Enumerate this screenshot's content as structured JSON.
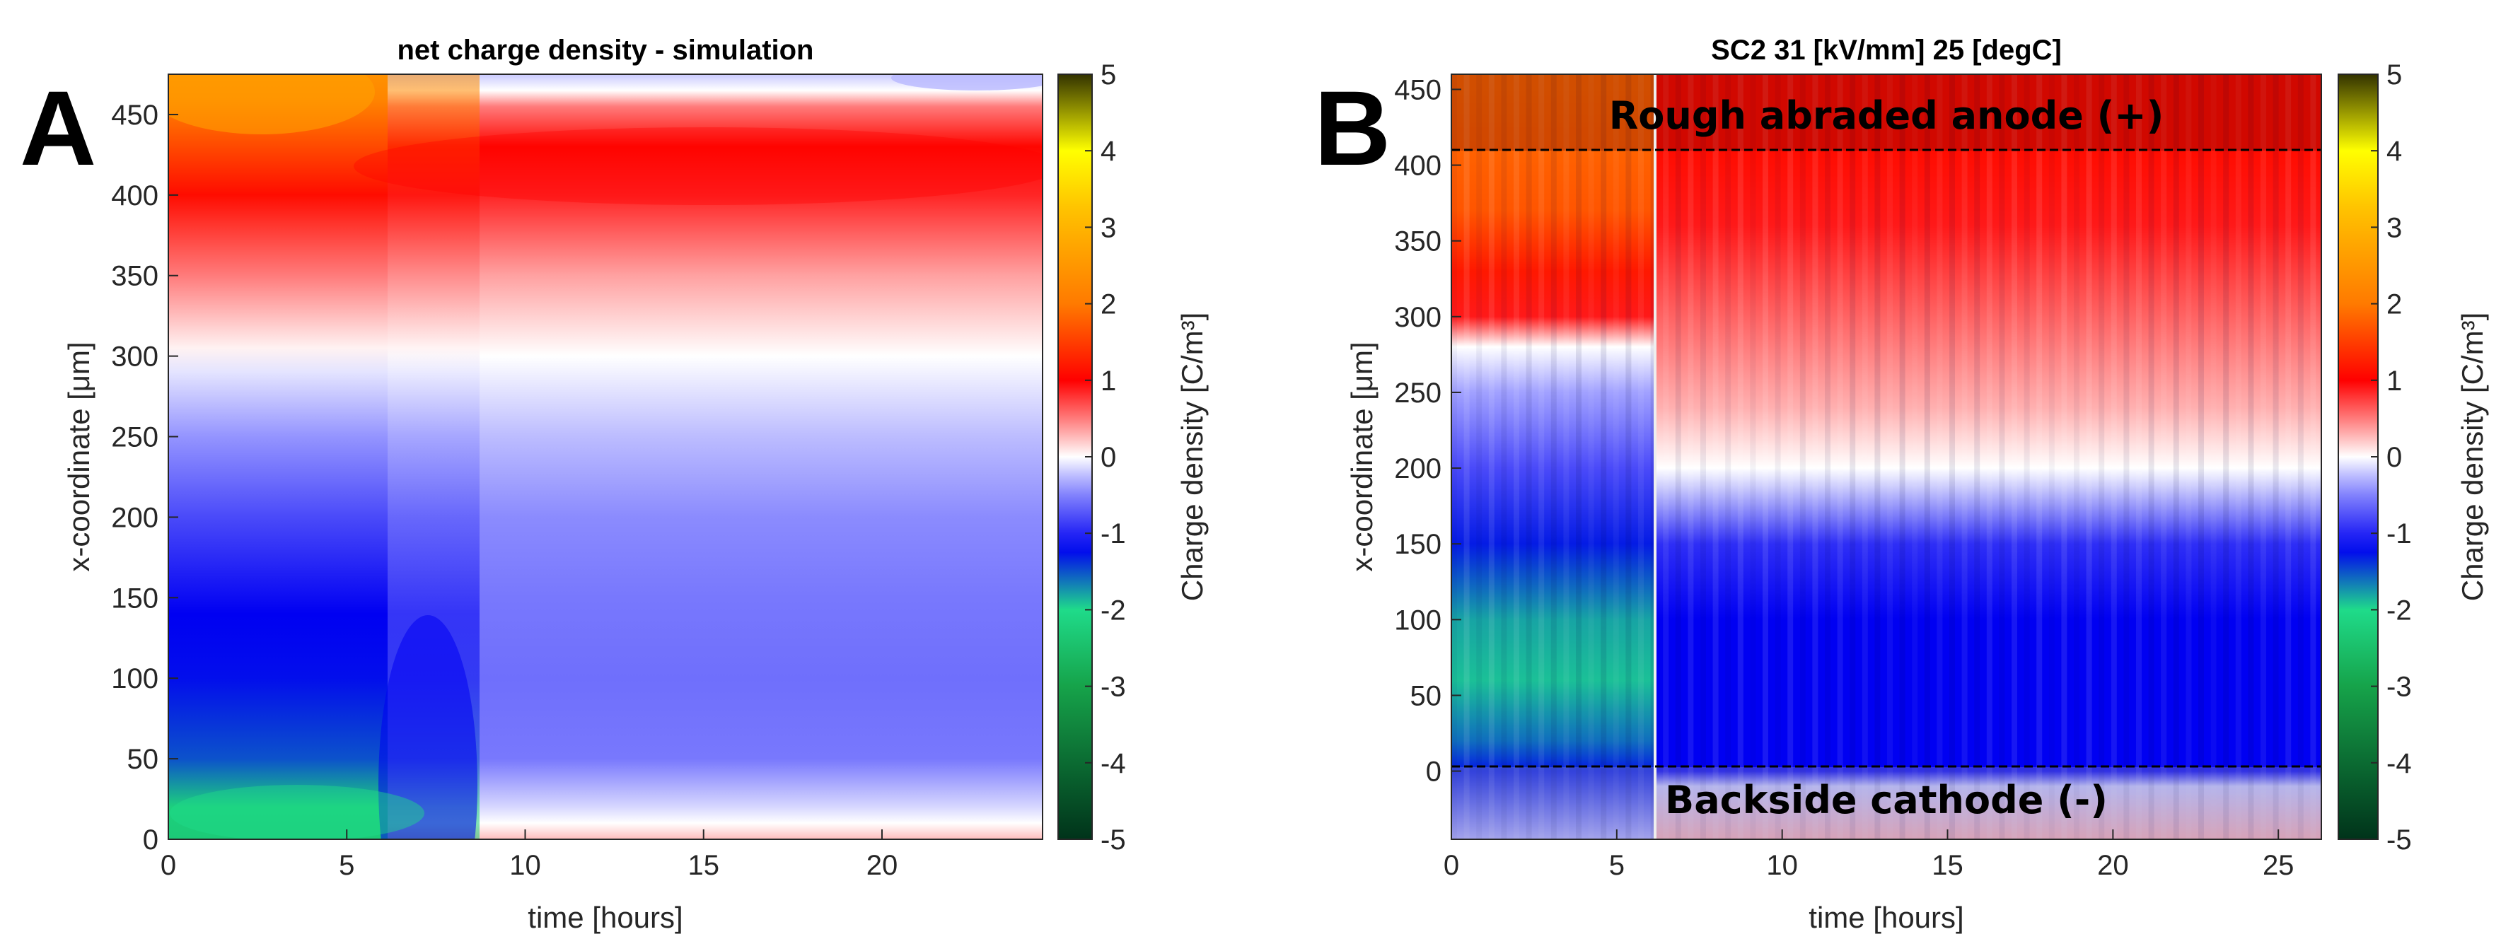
{
  "chart_data": [
    {
      "type": "heatmap",
      "panel_label": "A",
      "title": "net charge density - simulation",
      "xlabel": "time [hours]",
      "ylabel": "x-coordinate [μm]",
      "xlim": [
        0,
        24.5
      ],
      "ylim": [
        0,
        475
      ],
      "xticks": [
        0,
        5,
        10,
        15,
        20
      ],
      "yticks": [
        0,
        50,
        100,
        150,
        200,
        250,
        300,
        350,
        400,
        450
      ],
      "colorbar": {
        "label": "Charge density [C/m³]",
        "range": [
          -5,
          5
        ],
        "ticks": [
          5,
          4,
          3,
          2,
          1,
          0,
          -1,
          -2,
          -3,
          -4,
          -5
        ],
        "colormap": [
          {
            "v": -5,
            "c": "#00331a"
          },
          {
            "v": -3,
            "c": "#16a34a"
          },
          {
            "v": -2,
            "c": "#1fdb8a"
          },
          {
            "v": -1.2,
            "c": "#0000f2"
          },
          {
            "v": -0.4,
            "c": "#9494ff"
          },
          {
            "v": 0,
            "c": "#ffffff"
          },
          {
            "v": 0.4,
            "c": "#ff9494"
          },
          {
            "v": 1,
            "c": "#ff0000"
          },
          {
            "v": 2,
            "c": "#ff7a00"
          },
          {
            "v": 3.2,
            "c": "#ffbf00"
          },
          {
            "v": 4,
            "c": "#ffff00"
          },
          {
            "v": 5,
            "c": "#333300"
          }
        ]
      },
      "regions_note": "Charge density vs time (x) and depth (y); positive near top, negative near bottom, transition at t≈6.3 h",
      "profiles": {
        "early_t0_to_6.3h": {
          "x_um": [
            0,
            20,
            50,
            100,
            140,
            200,
            250,
            290,
            305,
            350,
            400,
            430,
            460,
            475
          ],
          "rho": [
            -2.3,
            -2.2,
            -1.5,
            -1.25,
            -1.2,
            -0.8,
            -0.4,
            -0.1,
            0.05,
            0.5,
            1.1,
            1.6,
            2.2,
            2.4
          ]
        },
        "late_after_10h": {
          "x_um": [
            0,
            10,
            20,
            50,
            100,
            150,
            200,
            250,
            300,
            350,
            400,
            430,
            455,
            465,
            475
          ],
          "rho": [
            0.25,
            0,
            -0.15,
            -0.55,
            -0.6,
            -0.55,
            -0.45,
            -0.25,
            0,
            0.35,
            0.85,
            1.05,
            0.5,
            0,
            -0.2
          ]
        }
      }
    },
    {
      "type": "heatmap",
      "panel_label": "B",
      "title": "SC2 31 [kV/mm] 25 [degC]",
      "xlabel": "time [hours]",
      "ylabel": "x-coordinate [μm]",
      "xlim": [
        0,
        26.3
      ],
      "ylim": [
        -45,
        460
      ],
      "xticks": [
        0,
        5,
        10,
        15,
        20,
        25
      ],
      "yticks": [
        0,
        50,
        100,
        150,
        200,
        250,
        300,
        350,
        400,
        450
      ],
      "annotations": [
        {
          "text": "Rough abraded anode (+)",
          "y": 460
        },
        {
          "text": "Backside cathode (-)",
          "y": -25
        }
      ],
      "dashed_lines_y": [
        410,
        0
      ],
      "colorbar": {
        "label": "Charge density [C/m³]",
        "range": [
          -5,
          5
        ],
        "ticks": [
          5,
          4,
          3,
          2,
          1,
          0,
          -1,
          -2,
          -3,
          -4,
          -5
        ]
      },
      "profiles": {
        "early_t0_to_6.3h": {
          "x_um": [
            -45,
            0,
            20,
            60,
            100,
            150,
            200,
            250,
            280,
            300,
            330,
            370,
            410,
            460
          ],
          "rho": [
            -0.3,
            -1.3,
            -1.6,
            -1.9,
            -1.8,
            -1.3,
            -0.8,
            -0.35,
            0,
            0.9,
            1.2,
            1.7,
            1.8,
            1.9
          ]
        },
        "late_after_6.3h": {
          "x_um": [
            -45,
            -10,
            0,
            40,
            100,
            150,
            200,
            240,
            300,
            360,
            410,
            460
          ],
          "rho": [
            0.3,
            -0.2,
            -1.2,
            -1.2,
            -1.2,
            -0.95,
            0,
            0.3,
            0.6,
            0.9,
            1.1,
            1.1
          ]
        }
      }
    }
  ]
}
